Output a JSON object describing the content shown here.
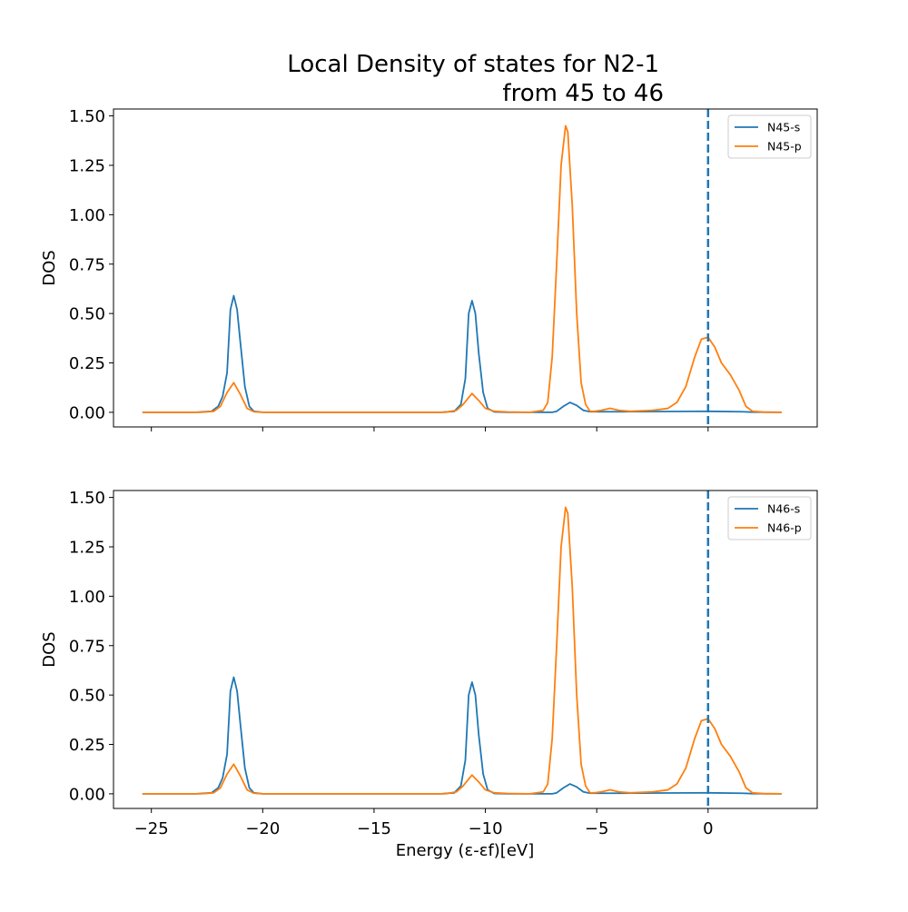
{
  "chart_data": {
    "type": "line",
    "title_lines": [
      "Local Density of states for N2-1",
      "from 45 to 46"
    ],
    "xlabel": "Energy (ε-εf)[eV]",
    "xlim": [
      -26.7,
      4.9
    ],
    "x_ticks": [
      -25,
      -20,
      -15,
      -10,
      -5,
      0
    ],
    "x_tick_labels": [
      "−25",
      "−20",
      "−15",
      "−10",
      "−5",
      "0"
    ],
    "fermi_line_x": 0,
    "colors": {
      "s": "#1f77b4",
      "p": "#ff7f0e",
      "fermi": "#1f77b4"
    },
    "legend_position": "upper-right",
    "panels": [
      {
        "ylabel": "DOS",
        "ylim": [
          -0.074,
          1.535
        ],
        "y_ticks": [
          0,
          0.25,
          0.5,
          0.75,
          1.0,
          1.25,
          1.5
        ],
        "y_tick_labels": [
          "0.00",
          "0.25",
          "0.50",
          "0.75",
          "1.00",
          "1.25",
          "1.50"
        ],
        "series": [
          {
            "name": "N45-s",
            "color": "#1f77b4",
            "x": [
              -25.4,
              -23.0,
              -22.3,
              -22.0,
              -21.8,
              -21.6,
              -21.45,
              -21.3,
              -21.15,
              -21.0,
              -20.8,
              -20.6,
              -20.4,
              -20.0,
              -16.0,
              -12.0,
              -11.4,
              -11.1,
              -10.9,
              -10.75,
              -10.6,
              -10.45,
              -10.3,
              -10.1,
              -9.9,
              -9.6,
              -9.0,
              -8.0,
              -7.0,
              -6.8,
              -6.5,
              -6.2,
              -5.9,
              -5.6,
              -5.3,
              -5.0,
              -4.0,
              -2.0,
              0.0,
              1.5,
              2.0,
              3.3
            ],
            "y": [
              0,
              0,
              0.005,
              0.03,
              0.08,
              0.2,
              0.52,
              0.59,
              0.52,
              0.35,
              0.13,
              0.03,
              0.005,
              0,
              0,
              0,
              0.005,
              0.04,
              0.17,
              0.5,
              0.565,
              0.5,
              0.3,
              0.1,
              0.02,
              0.002,
              0,
              0,
              0,
              0.005,
              0.03,
              0.05,
              0.035,
              0.01,
              0.003,
              0.003,
              0.003,
              0.004,
              0.005,
              0.003,
              0.001,
              0
            ]
          },
          {
            "name": "N45-p",
            "color": "#ff7f0e",
            "x": [
              -25.4,
              -22.8,
              -22.2,
              -21.9,
              -21.6,
              -21.3,
              -21.0,
              -20.7,
              -20.4,
              -20.0,
              -16.0,
              -11.8,
              -11.3,
              -11.0,
              -10.6,
              -10.3,
              -10.0,
              -9.6,
              -9.0,
              -8.0,
              -7.4,
              -7.2,
              -7.0,
              -6.8,
              -6.6,
              -6.4,
              -6.3,
              -6.1,
              -5.9,
              -5.7,
              -5.5,
              -5.3,
              -5.1,
              -4.8,
              -4.4,
              -4.0,
              -3.5,
              -2.5,
              -1.8,
              -1.4,
              -1.0,
              -0.6,
              -0.3,
              0.0,
              0.3,
              0.6,
              1.0,
              1.4,
              1.7,
              2.0,
              2.5,
              3.3
            ],
            "y": [
              0,
              0,
              0.005,
              0.03,
              0.1,
              0.15,
              0.09,
              0.02,
              0.003,
              0,
              0,
              0,
              0.01,
              0.04,
              0.095,
              0.06,
              0.02,
              0.005,
              0.002,
              0,
              0.01,
              0.05,
              0.28,
              0.75,
              1.25,
              1.45,
              1.42,
              1.05,
              0.5,
              0.15,
              0.04,
              0.005,
              0.005,
              0.01,
              0.02,
              0.01,
              0.005,
              0.01,
              0.02,
              0.05,
              0.13,
              0.28,
              0.37,
              0.38,
              0.33,
              0.25,
              0.19,
              0.11,
              0.03,
              0.005,
              0.001,
              0
            ]
          }
        ]
      },
      {
        "ylabel": "DOS",
        "ylim": [
          -0.074,
          1.535
        ],
        "y_ticks": [
          0,
          0.25,
          0.5,
          0.75,
          1.0,
          1.25,
          1.5
        ],
        "y_tick_labels": [
          "0.00",
          "0.25",
          "0.50",
          "0.75",
          "1.00",
          "1.25",
          "1.50"
        ],
        "series": [
          {
            "name": "N46-s",
            "color": "#1f77b4",
            "x": [
              -25.4,
              -23.0,
              -22.3,
              -22.0,
              -21.8,
              -21.6,
              -21.45,
              -21.3,
              -21.15,
              -21.0,
              -20.8,
              -20.6,
              -20.4,
              -20.0,
              -16.0,
              -12.0,
              -11.4,
              -11.1,
              -10.9,
              -10.75,
              -10.6,
              -10.45,
              -10.3,
              -10.1,
              -9.9,
              -9.6,
              -9.0,
              -8.0,
              -7.0,
              -6.8,
              -6.5,
              -6.2,
              -5.9,
              -5.6,
              -5.3,
              -5.0,
              -4.0,
              -2.0,
              0.0,
              1.5,
              2.0,
              3.3
            ],
            "y": [
              0,
              0,
              0.005,
              0.03,
              0.08,
              0.2,
              0.52,
              0.59,
              0.52,
              0.35,
              0.13,
              0.03,
              0.005,
              0,
              0,
              0,
              0.005,
              0.04,
              0.17,
              0.5,
              0.565,
              0.5,
              0.3,
              0.1,
              0.02,
              0.002,
              0,
              0,
              0,
              0.005,
              0.03,
              0.05,
              0.035,
              0.01,
              0.003,
              0.003,
              0.003,
              0.004,
              0.005,
              0.003,
              0.001,
              0
            ]
          },
          {
            "name": "N46-p",
            "color": "#ff7f0e",
            "x": [
              -25.4,
              -22.8,
              -22.2,
              -21.9,
              -21.6,
              -21.3,
              -21.0,
              -20.7,
              -20.4,
              -20.0,
              -16.0,
              -11.8,
              -11.3,
              -11.0,
              -10.6,
              -10.3,
              -10.0,
              -9.6,
              -9.0,
              -8.0,
              -7.4,
              -7.2,
              -7.0,
              -6.8,
              -6.6,
              -6.4,
              -6.3,
              -6.1,
              -5.9,
              -5.7,
              -5.5,
              -5.3,
              -5.1,
              -4.8,
              -4.4,
              -4.0,
              -3.5,
              -2.5,
              -1.8,
              -1.4,
              -1.0,
              -0.6,
              -0.3,
              0.0,
              0.3,
              0.6,
              1.0,
              1.4,
              1.7,
              2.0,
              2.5,
              3.3
            ],
            "y": [
              0,
              0,
              0.005,
              0.03,
              0.1,
              0.15,
              0.09,
              0.02,
              0.003,
              0,
              0,
              0,
              0.01,
              0.04,
              0.095,
              0.06,
              0.02,
              0.005,
              0.002,
              0,
              0.01,
              0.05,
              0.28,
              0.75,
              1.25,
              1.45,
              1.42,
              1.05,
              0.5,
              0.15,
              0.04,
              0.005,
              0.005,
              0.01,
              0.02,
              0.01,
              0.005,
              0.01,
              0.02,
              0.05,
              0.13,
              0.28,
              0.37,
              0.38,
              0.33,
              0.25,
              0.19,
              0.11,
              0.03,
              0.005,
              0.001,
              0
            ]
          }
        ]
      }
    ]
  }
}
